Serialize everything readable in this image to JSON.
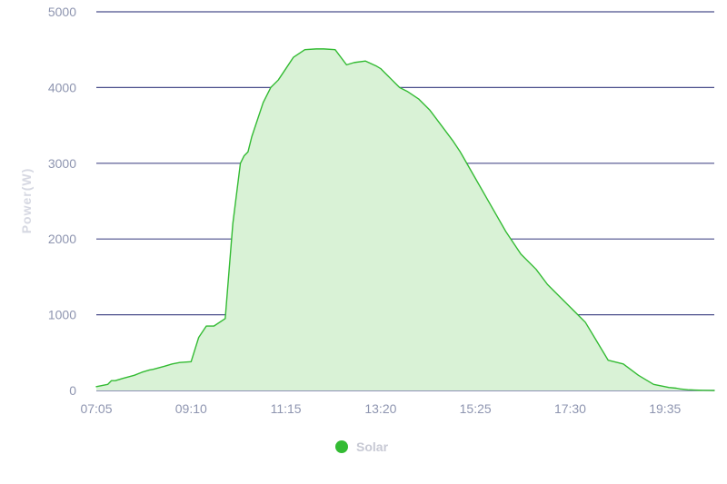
{
  "chart_data": {
    "type": "area",
    "title": "",
    "xlabel": "",
    "ylabel": "Power(W)",
    "ylim": [
      0,
      5000
    ],
    "y_ticks": [
      "0",
      "1000",
      "2000",
      "3000",
      "4000",
      "5000"
    ],
    "x_tick_labels": [
      "07:05",
      "09:10",
      "11:15",
      "13:20",
      "15:25",
      "17:30",
      "19:35"
    ],
    "x_range": [
      "07:05",
      "20:40"
    ],
    "grid": true,
    "legend_position": "bottom-center",
    "series": [
      {
        "name": "Solar",
        "color": "#33bb33",
        "fill": "#d9f2d6",
        "x": [
          "07:05",
          "07:20",
          "07:25",
          "07:30",
          "07:40",
          "07:55",
          "08:05",
          "08:15",
          "08:20",
          "08:35",
          "08:45",
          "08:55",
          "09:10",
          "09:20",
          "09:30",
          "09:40",
          "09:55",
          "10:05",
          "10:15",
          "10:20",
          "10:25",
          "10:30",
          "10:35",
          "10:45",
          "10:55",
          "11:05",
          "11:15",
          "11:25",
          "11:40",
          "11:55",
          "12:05",
          "12:20",
          "12:35",
          "12:45",
          "13:00",
          "13:15",
          "13:20",
          "13:25",
          "13:30",
          "13:35",
          "13:40",
          "13:45",
          "13:55",
          "14:10",
          "14:25",
          "14:40",
          "14:55",
          "15:05",
          "15:25",
          "15:45",
          "16:05",
          "16:25",
          "16:45",
          "17:00",
          "17:10",
          "17:30",
          "17:40",
          "17:50",
          "18:05",
          "18:20",
          "18:40",
          "19:00",
          "19:20",
          "19:35",
          "19:40",
          "19:50",
          "19:55",
          "20:05",
          "20:15",
          "20:20",
          "20:25",
          "20:35",
          "20:40"
        ],
        "y": [
          50,
          80,
          130,
          130,
          160,
          200,
          240,
          270,
          280,
          320,
          350,
          370,
          380,
          700,
          850,
          850,
          950,
          2200,
          3000,
          3100,
          3150,
          3350,
          3500,
          3800,
          4000,
          4100,
          4250,
          4400,
          4500,
          4510,
          4510,
          4500,
          4300,
          4330,
          4350,
          4280,
          4250,
          4200,
          4150,
          4100,
          4050,
          4000,
          3950,
          3850,
          3700,
          3500,
          3300,
          3150,
          2800,
          2450,
          2100,
          1800,
          1600,
          1400,
          1300,
          1100,
          1000,
          900,
          650,
          400,
          350,
          200,
          80,
          50,
          40,
          30,
          20,
          10,
          5,
          3,
          2,
          1,
          0
        ]
      }
    ]
  }
}
